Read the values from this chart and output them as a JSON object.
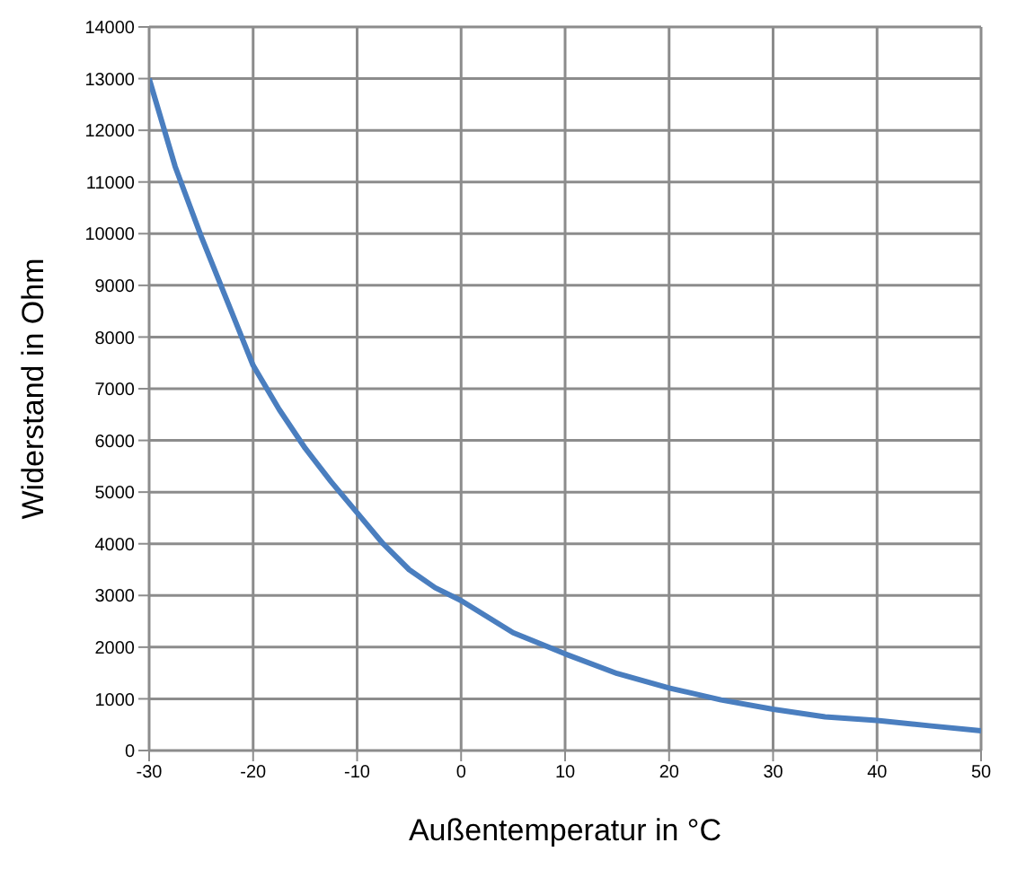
{
  "chart_data": {
    "type": "line",
    "xlabel": "Außentemperatur in °C",
    "ylabel": "Widerstand in Ohm",
    "x": [
      -30,
      -27.5,
      -25,
      -22.5,
      -20,
      -17.5,
      -15,
      -12.5,
      -10,
      -7.5,
      -5,
      -2.5,
      0,
      5,
      10,
      15,
      20,
      25,
      30,
      35,
      40,
      45,
      50
    ],
    "series": [
      {
        "color": "#4a7ebf",
        "values": [
          13000,
          11300,
          9950,
          8700,
          7450,
          6600,
          5850,
          5200,
          4600,
          4000,
          3500,
          3150,
          2900,
          2280,
          1870,
          1490,
          1210,
          980,
          800,
          650,
          580,
          480,
          380
        ]
      }
    ],
    "xlim": [
      -30,
      50
    ],
    "xticks": [
      -30,
      -20,
      -10,
      0,
      10,
      20,
      30,
      40,
      50
    ],
    "ylim": [
      0,
      14000
    ],
    "yticks": [
      0,
      1000,
      2000,
      3000,
      4000,
      5000,
      6000,
      7000,
      8000,
      9000,
      10000,
      11000,
      12000,
      13000,
      14000
    ],
    "grid": true,
    "marker": "none",
    "line_style": "solid",
    "legend": false
  }
}
